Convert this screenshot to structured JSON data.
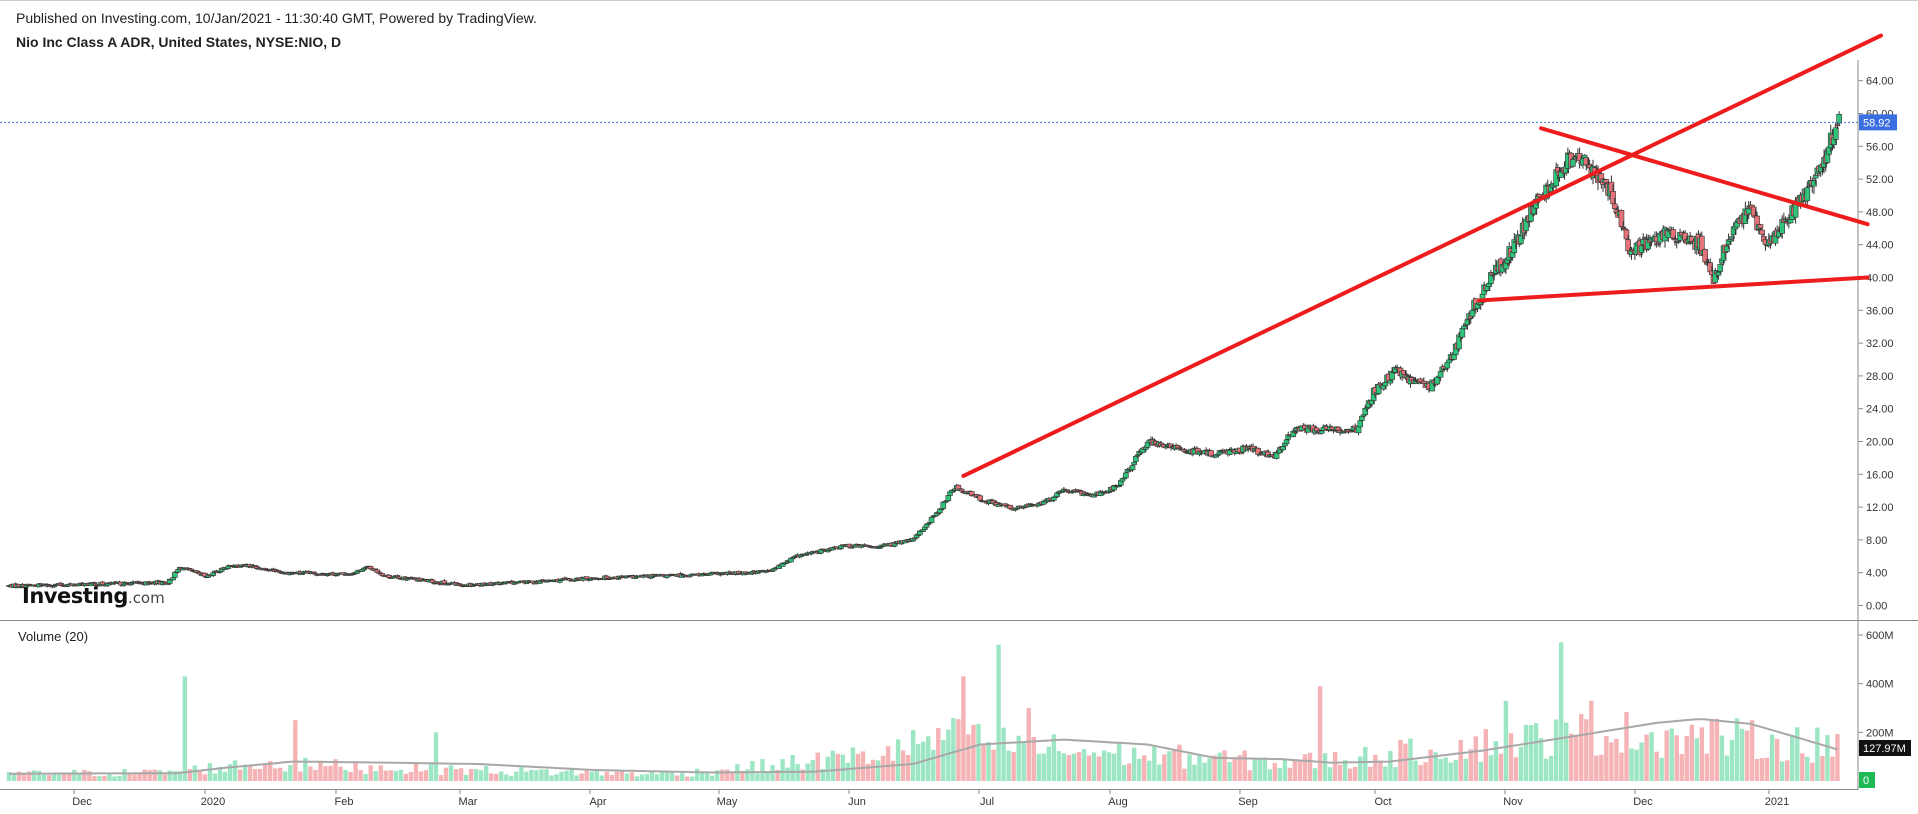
{
  "header": {
    "published": "Published on Investing.com, 10/Jan/2021 - 11:30:40 GMT, Powered by TradingView.",
    "symbol": "Nio Inc Class A ADR, United States, NYSE:NIO, D"
  },
  "logo": {
    "main": "Investing",
    "suffix": ".com"
  },
  "chart_data": {
    "type": "candlestick",
    "title": "Nio Inc Class A ADR, United States, NYSE:NIO, D",
    "price_axis": {
      "range": [
        -1.8,
        66.5
      ],
      "ticks": [
        "0.00",
        "4.00",
        "8.00",
        "12.00",
        "16.00",
        "20.00",
        "24.00",
        "28.00",
        "32.00",
        "36.00",
        "40.00",
        "44.00",
        "48.00",
        "52.00",
        "56.00",
        "60.00",
        "64.00"
      ],
      "last_price": 58.92,
      "last_price_label": "58.92"
    },
    "volume_panel": {
      "label": "Volume (20)",
      "range_millions": [
        0,
        620
      ],
      "ticks": [
        "200M",
        "400M",
        "600M"
      ],
      "last_ma_label": "127.97M",
      "zero_label": "0"
    },
    "x_axis_labels": [
      "Dec",
      "2020",
      "Feb",
      "Mar",
      "Apr",
      "May",
      "Jun",
      "Jul",
      "Aug",
      "Sep",
      "Oct",
      "Nov",
      "Dec",
      "2021"
    ],
    "price_path": [
      [
        0,
        2.4
      ],
      [
        50,
        2.6
      ],
      [
        95,
        2.8
      ],
      [
        102,
        4.6
      ],
      [
        118,
        3.6
      ],
      [
        132,
        4.8
      ],
      [
        140,
        5.0
      ],
      [
        165,
        4.0
      ],
      [
        203,
        3.8
      ],
      [
        215,
        4.7
      ],
      [
        225,
        3.6
      ],
      [
        250,
        3.0
      ],
      [
        270,
        2.5
      ],
      [
        315,
        2.9
      ],
      [
        355,
        3.4
      ],
      [
        390,
        3.6
      ],
      [
        430,
        3.9
      ],
      [
        455,
        4.2
      ],
      [
        470,
        6.0
      ],
      [
        500,
        7.3
      ],
      [
        520,
        7.2
      ],
      [
        540,
        8.0
      ],
      [
        555,
        11.5
      ],
      [
        565,
        14.5
      ],
      [
        580,
        13.0
      ],
      [
        600,
        11.8
      ],
      [
        618,
        12.5
      ],
      [
        630,
        14.0
      ],
      [
        648,
        13.5
      ],
      [
        662,
        14.5
      ],
      [
        680,
        20.0
      ],
      [
        700,
        19.0
      ],
      [
        718,
        18.5
      ],
      [
        740,
        19.2
      ],
      [
        755,
        18.0
      ],
      [
        768,
        21.5
      ],
      [
        805,
        21.5
      ],
      [
        815,
        26.0
      ],
      [
        828,
        28.5
      ],
      [
        848,
        26.5
      ],
      [
        862,
        30.5
      ],
      [
        875,
        36.5
      ],
      [
        887,
        40.5
      ],
      [
        900,
        44.0
      ],
      [
        912,
        49.0
      ],
      [
        932,
        54.5
      ],
      [
        945,
        53.5
      ],
      [
        958,
        50.0
      ],
      [
        968,
        43.0
      ],
      [
        990,
        45.5
      ],
      [
        1010,
        44.0
      ],
      [
        1018,
        40.0
      ],
      [
        1028,
        45.0
      ],
      [
        1040,
        48.5
      ],
      [
        1050,
        43.5
      ],
      [
        1060,
        47.0
      ],
      [
        1072,
        50.0
      ],
      [
        1083,
        54.0
      ],
      [
        1093,
        58.92
      ]
    ],
    "price_noise": 0.35,
    "volume_base_millions": [
      [
        0,
        30
      ],
      [
        90,
        35
      ],
      [
        150,
        70
      ],
      [
        200,
        60
      ],
      [
        300,
        40
      ],
      [
        400,
        30
      ],
      [
        450,
        60
      ],
      [
        520,
        110
      ],
      [
        560,
        180
      ],
      [
        640,
        120
      ],
      [
        700,
        100
      ],
      [
        760,
        75
      ],
      [
        800,
        90
      ],
      [
        880,
        150
      ],
      [
        950,
        200
      ],
      [
        1020,
        180
      ],
      [
        1093,
        140
      ]
    ],
    "volume_ma_millions": [
      [
        0,
        30
      ],
      [
        100,
        32
      ],
      [
        130,
        55
      ],
      [
        170,
        80
      ],
      [
        230,
        75
      ],
      [
        280,
        70
      ],
      [
        350,
        45
      ],
      [
        420,
        35
      ],
      [
        480,
        38
      ],
      [
        540,
        70
      ],
      [
        580,
        150
      ],
      [
        630,
        170
      ],
      [
        680,
        150
      ],
      [
        720,
        95
      ],
      [
        760,
        90
      ],
      [
        790,
        75
      ],
      [
        825,
        80
      ],
      [
        880,
        125
      ],
      [
        940,
        190
      ],
      [
        985,
        240
      ],
      [
        1010,
        255
      ],
      [
        1040,
        235
      ],
      [
        1070,
        175
      ],
      [
        1093,
        128
      ]
    ],
    "volume_spikes_millions": [
      [
        104,
        430
      ],
      [
        170,
        250
      ],
      [
        254,
        200
      ],
      [
        571,
        430
      ],
      [
        590,
        560
      ],
      [
        610,
        300
      ],
      [
        783,
        390
      ],
      [
        894,
        330
      ],
      [
        928,
        570
      ],
      [
        944,
        330
      ],
      [
        1081,
        220
      ]
    ],
    "trendlines": [
      {
        "from": [
          570,
          15.8
        ],
        "to": [
          1118,
          69.5
        ]
      },
      {
        "from": [
          915,
          58.2
        ],
        "to": [
          1110,
          46.5
        ]
      },
      {
        "from": [
          878,
          37.2
        ],
        "to": [
          1110,
          40.0
        ]
      }
    ],
    "colors": {
      "up": "#26a69a",
      "up_fill": "#2fc47a",
      "down": "#ef5350",
      "down_fill": "#e6727a",
      "volume_up": "#9de6c4",
      "volume_down": "#f5b3b6",
      "volume_ma": "#a8a8a8",
      "trendline": "#ee1c1c",
      "last_price": "#3b6fe0"
    }
  }
}
